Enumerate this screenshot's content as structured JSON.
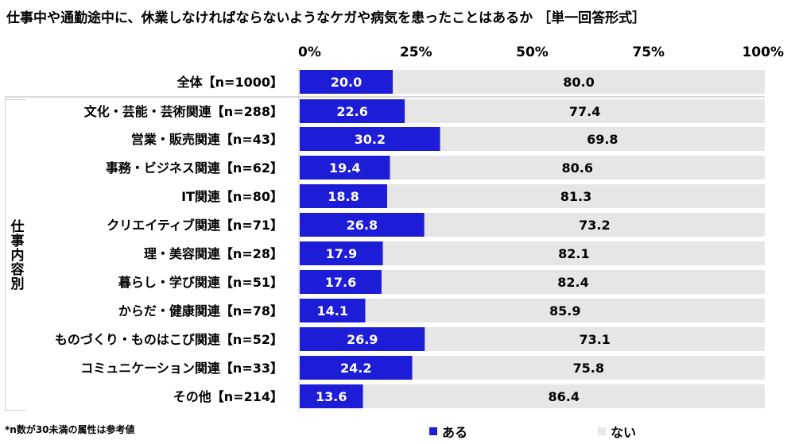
{
  "title": "仕事中や通勤途中に、休業しなければならないようなケガや病気を患ったことはあるか ［単一回答形式］",
  "group_label": "仕事内容別",
  "footnote": "*n数が30未満の属性は参考値",
  "colors": {
    "aru": "#1d1dd8",
    "nai": "#e6e6e6",
    "divider": "#cfcfcf"
  },
  "chart_data": {
    "type": "bar",
    "orientation": "horizontal",
    "stacked": true,
    "percent_axis": [
      0,
      100
    ],
    "tick_labels": [
      "0%",
      "25%",
      "50%",
      "75%",
      "100%"
    ],
    "categories": [
      "全体【n=1000】",
      "文化・芸能・芸術関連【n=288】",
      "営業・販売関連【n=43】",
      "事務・ビジネス関連【n=62】",
      "IT関連【n=80】",
      "クリエイティブ関連【n=71】",
      "理・美容関連【n=28】",
      "暮らし・学び関連【n=51】",
      "からだ・健康関連【n=78】",
      "ものづくり・ものはこび関連【n=52】",
      "コミュニケーション関連【n=33】",
      "その他【n=214】"
    ],
    "series": [
      {
        "name": "ある",
        "values": [
          20.0,
          22.6,
          30.2,
          19.4,
          18.8,
          26.8,
          17.9,
          17.6,
          14.1,
          26.9,
          24.2,
          13.6
        ]
      },
      {
        "name": "ない",
        "values": [
          80.0,
          77.4,
          69.8,
          80.6,
          81.3,
          73.2,
          82.1,
          82.4,
          85.9,
          73.1,
          75.8,
          86.4
        ]
      }
    ],
    "legend_position": "bottom"
  }
}
